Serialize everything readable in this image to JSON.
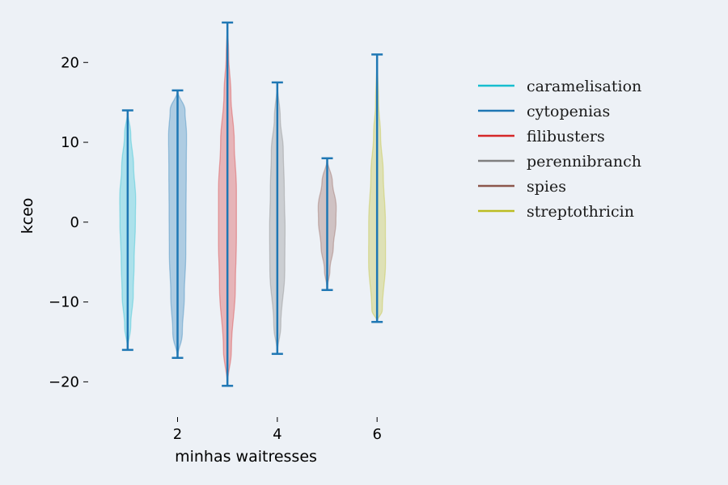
{
  "chart_data": {
    "type": "violin",
    "title": "",
    "xlabel": "minhas waitresses",
    "ylabel": "kceo",
    "xlim": [
      0.5,
      6.5
    ],
    "ylim": [
      -23,
      26
    ],
    "x_ticks": [
      2,
      4,
      6
    ],
    "y_ticks": [
      -20,
      -10,
      0,
      10,
      20
    ],
    "grid": false,
    "legend_position": "upper-right",
    "stat_line_color": "#1f77b4",
    "series": [
      {
        "name": "caramelisation",
        "x": 1,
        "min": -16,
        "max": 14,
        "color": "#17becf",
        "density": [
          [
            -16,
            0.0
          ],
          [
            -13,
            0.25
          ],
          [
            -9,
            0.45
          ],
          [
            -5,
            0.52
          ],
          [
            0,
            0.62
          ],
          [
            3,
            0.64
          ],
          [
            7,
            0.48
          ],
          [
            11,
            0.25
          ],
          [
            14,
            0.0
          ]
        ]
      },
      {
        "name": "cytopenias",
        "x": 2,
        "min": -17,
        "max": 16.5,
        "color": "#1f77b4",
        "density": [
          [
            -17,
            0.0
          ],
          [
            -14,
            0.38
          ],
          [
            -9,
            0.55
          ],
          [
            -4,
            0.66
          ],
          [
            1,
            0.68
          ],
          [
            6,
            0.7
          ],
          [
            11,
            0.72
          ],
          [
            14,
            0.6
          ],
          [
            16.5,
            0.0
          ]
        ]
      },
      {
        "name": "filibusters",
        "x": 3,
        "min": -20.5,
        "max": 25,
        "color": "#d62728",
        "density": [
          [
            -20.5,
            0.0
          ],
          [
            -16,
            0.32
          ],
          [
            -8,
            0.64
          ],
          [
            -2,
            0.72
          ],
          [
            4,
            0.72
          ],
          [
            10,
            0.55
          ],
          [
            16,
            0.28
          ],
          [
            21,
            0.1
          ],
          [
            25,
            0.0
          ]
        ]
      },
      {
        "name": "perennibranch",
        "x": 4,
        "min": -16.5,
        "max": 17.5,
        "color": "#7f7f7f",
        "density": [
          [
            -16.5,
            0.0
          ],
          [
            -13,
            0.28
          ],
          [
            -6,
            0.6
          ],
          [
            -1,
            0.62
          ],
          [
            4,
            0.56
          ],
          [
            9,
            0.48
          ],
          [
            13,
            0.24
          ],
          [
            17.5,
            0.0
          ]
        ]
      },
      {
        "name": "spies",
        "x": 5,
        "min": -8.5,
        "max": 8,
        "color": "#8c564b",
        "density": [
          [
            -8.5,
            0.0
          ],
          [
            -6,
            0.22
          ],
          [
            -3,
            0.5
          ],
          [
            0,
            0.7
          ],
          [
            2,
            0.72
          ],
          [
            5,
            0.42
          ],
          [
            8,
            0.0
          ]
        ]
      },
      {
        "name": "streptothricin",
        "x": 6,
        "min": -12.5,
        "max": 21,
        "color": "#bcbd22",
        "density": [
          [
            -12.5,
            0.0
          ],
          [
            -11,
            0.42
          ],
          [
            -5,
            0.68
          ],
          [
            0,
            0.67
          ],
          [
            6,
            0.5
          ],
          [
            11,
            0.28
          ],
          [
            15,
            0.12
          ],
          [
            21,
            0.0
          ]
        ]
      }
    ]
  }
}
